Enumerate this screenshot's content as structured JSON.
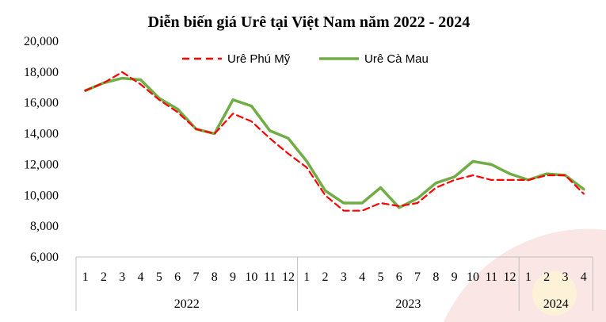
{
  "chart_data": {
    "type": "line",
    "title": "Diễn biến giá Urê  tại Việt Nam năm 2022 - 2024",
    "xlabel": "",
    "ylabel": "",
    "ylim": [
      6000,
      20000
    ],
    "yticks": [
      "6,000",
      "8,000",
      "10,000",
      "12,000",
      "14,000",
      "16,000",
      "18,000",
      "20,000"
    ],
    "ytick_values": [
      6000,
      8000,
      10000,
      12000,
      14000,
      16000,
      18000,
      20000
    ],
    "grid": false,
    "legend_position": "top",
    "groups": [
      {
        "label": "2022",
        "months": [
          "1",
          "2",
          "3",
          "4",
          "5",
          "6",
          "7",
          "8",
          "9",
          "10",
          "11",
          "12"
        ]
      },
      {
        "label": "2023",
        "months": [
          "1",
          "2",
          "3",
          "4",
          "5",
          "6",
          "7",
          "8",
          "9",
          "10",
          "11",
          "12"
        ]
      },
      {
        "label": "2024",
        "months": [
          "1",
          "2",
          "3",
          "4"
        ]
      }
    ],
    "series": [
      {
        "name": "Urê Phú Mỹ",
        "color": "#ff0000",
        "style": "dashed",
        "values": [
          16800,
          17300,
          18000,
          17200,
          16200,
          15400,
          14300,
          14000,
          15300,
          14800,
          13700,
          12700,
          11800,
          10000,
          9000,
          9000,
          9500,
          9300,
          9500,
          10500,
          11000,
          11300,
          11000,
          11000,
          11000,
          11300,
          11300,
          10100
        ]
      },
      {
        "name": "Urê Cà Mau",
        "color": "#70ad47",
        "style": "solid",
        "values": [
          16800,
          17300,
          17600,
          17500,
          16300,
          15600,
          14300,
          14000,
          16200,
          15800,
          14200,
          13700,
          12200,
          10300,
          9500,
          9500,
          10500,
          9200,
          9800,
          10800,
          11200,
          12200,
          12000,
          11400,
          11000,
          11400,
          11300,
          10400
        ]
      }
    ]
  }
}
